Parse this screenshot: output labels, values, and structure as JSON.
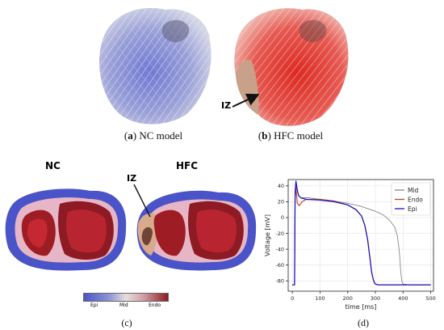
{
  "panels": {
    "a": {
      "letter": "a",
      "caption": "NC model"
    },
    "b": {
      "letter": "b",
      "caption": "HFC model",
      "annotation": "IZ"
    },
    "c": {
      "letter": "(c)",
      "left_title": "NC",
      "right_title": "HFC",
      "annotation": "IZ",
      "colorbar": {
        "labels": [
          "Epi",
          "Mid",
          "Endo"
        ],
        "colors": [
          "#4a54c8",
          "#e8dede",
          "#8e1a24"
        ]
      }
    },
    "d": {
      "letter": "(d)"
    }
  },
  "colors": {
    "nc_fiber": "#7f86d6",
    "hfc_fiber": "#e0483f",
    "mid": "#888888",
    "endo": "#c2452a",
    "epi": "#1414c8"
  },
  "chart_data": {
    "type": "line",
    "xlabel": "time [ms]",
    "ylabel": "Voltage [mV]",
    "xlim": [
      -15,
      510
    ],
    "ylim": [
      -93,
      48
    ],
    "xticks": [
      0,
      100,
      200,
      300,
      400,
      500
    ],
    "yticks": [
      -80,
      -60,
      -40,
      -20,
      0,
      20,
      40
    ],
    "legend_position": "top-right",
    "grid": true,
    "series": [
      {
        "name": "Mid",
        "color": "#888888",
        "x": [
          0,
          8,
          10,
          14,
          20,
          30,
          40,
          60,
          100,
          150,
          200,
          250,
          300,
          330,
          350,
          370,
          380,
          387,
          392,
          396,
          400,
          420,
          500
        ],
        "y": [
          -85,
          -85,
          30,
          42,
          30,
          25,
          25,
          25,
          23,
          21,
          18,
          14,
          8,
          3,
          -3,
          -12,
          -24,
          -45,
          -70,
          -81,
          -84,
          -85,
          -85
        ]
      },
      {
        "name": "Endo",
        "color": "#c2452a",
        "x": [
          0,
          8,
          10,
          13,
          18,
          25,
          35,
          50,
          100,
          150,
          200,
          230,
          250,
          262,
          272,
          280,
          286,
          292,
          296,
          300,
          310,
          330,
          500
        ],
        "y": [
          -85,
          -85,
          25,
          38,
          18,
          15,
          20,
          23,
          23,
          21,
          16,
          10,
          2,
          -10,
          -28,
          -50,
          -68,
          -78,
          -82,
          -84,
          -85,
          -85,
          -85
        ]
      },
      {
        "name": "Epi",
        "color": "#1414c8",
        "x": [
          0,
          8,
          10,
          13,
          17,
          22,
          30,
          50,
          100,
          150,
          200,
          230,
          250,
          262,
          272,
          280,
          286,
          292,
          296,
          300,
          310,
          330,
          500
        ],
        "y": [
          -85,
          -85,
          33,
          46,
          37,
          28,
          25,
          23,
          22,
          20,
          16,
          10,
          2,
          -10,
          -28,
          -50,
          -68,
          -78,
          -82,
          -84,
          -85,
          -85,
          -85
        ]
      }
    ]
  }
}
